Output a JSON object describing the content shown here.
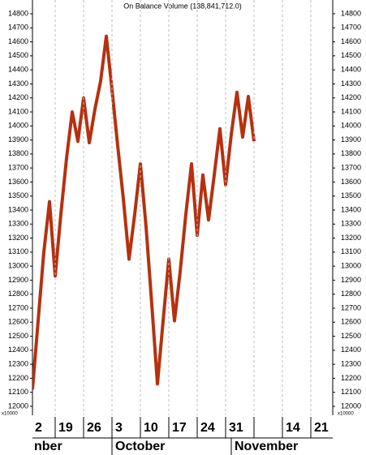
{
  "chart_data": {
    "type": "line",
    "title": "On Balance Volume (138,841,712.0)",
    "y_unit_label": "x10000",
    "categories": [
      "2",
      null,
      null,
      null,
      null,
      "19",
      null,
      null,
      null,
      null,
      "26",
      null,
      null,
      null,
      null,
      "3",
      null,
      null,
      null,
      null,
      "10",
      null,
      null,
      null,
      null,
      "17",
      null,
      null,
      null,
      null,
      "24",
      null,
      null,
      null,
      null,
      "31",
      null,
      null,
      null,
      null,
      null,
      null,
      null,
      null,
      null,
      "14",
      null,
      null,
      null,
      null,
      "21",
      null,
      null,
      null
    ],
    "month_categories": [
      "nber",
      null,
      null,
      null,
      null,
      null,
      null,
      null,
      null,
      null,
      null,
      null,
      null,
      null,
      null,
      "October",
      null,
      null,
      null,
      null,
      null,
      null,
      null,
      null,
      null,
      null,
      null,
      null,
      null,
      null,
      null,
      null,
      null,
      null,
      null,
      null,
      "November",
      null,
      null,
      null,
      null,
      null,
      null,
      null,
      null,
      null,
      null,
      null,
      null,
      null,
      null,
      null,
      null,
      null
    ],
    "series": [
      {
        "color": "#b5310f",
        "values": [
          null,
          12120,
          12610,
          13100,
          13460,
          12930,
          13370,
          13770,
          14100,
          13890,
          14200,
          13880,
          14120,
          14320,
          14640,
          14260,
          13860,
          13480,
          13050,
          13370,
          13730,
          13280,
          12730,
          12160,
          12610,
          13050,
          12610,
          12960,
          13370,
          13730,
          13220,
          13650,
          13330,
          13650,
          13980,
          13580,
          13940,
          14240,
          13920,
          14210,
          13890,
          null,
          null,
          null,
          null,
          null,
          null,
          null,
          null,
          null,
          null,
          null,
          null,
          null
        ]
      }
    ],
    "ylim": [
      12000,
      14800
    ],
    "yticks": [
      12000,
      12100,
      12200,
      12300,
      12400,
      12500,
      12600,
      12700,
      12800,
      12900,
      13000,
      13100,
      13200,
      13300,
      13400,
      13500,
      13600,
      13700,
      13800,
      13900,
      14000,
      14100,
      14200,
      14300,
      14400,
      14500,
      14600,
      14700,
      14800
    ],
    "grid": true
  }
}
